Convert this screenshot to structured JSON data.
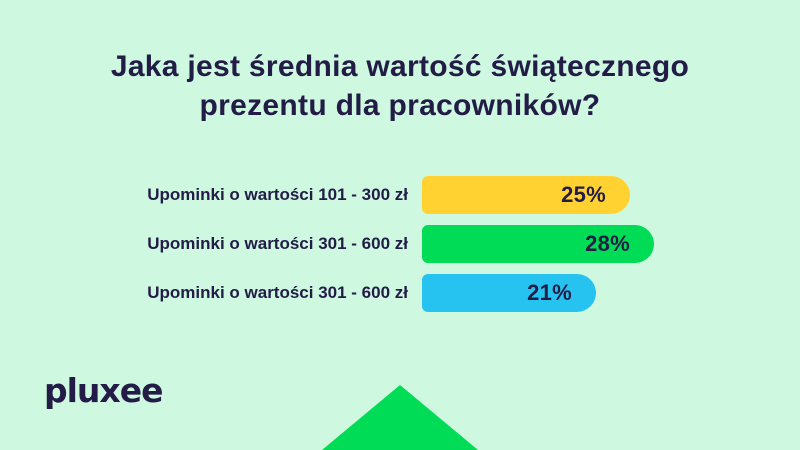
{
  "title": {
    "line1": "Jaka jest średnia wartość świątecznego",
    "line2": "prezentu dla pracowników?"
  },
  "chart_data": {
    "type": "bar",
    "orientation": "horizontal",
    "title": "Jaka jest średnia wartość świątecznego prezentu dla pracowników?",
    "categories": [
      "Upominki o wartości 101 - 300 zł",
      "Upominki o wartości 301 - 600 zł",
      "Upominki o wartości 301 - 600 zł"
    ],
    "values": [
      25,
      28,
      21
    ],
    "value_labels": [
      "25%",
      "28%",
      "21%"
    ],
    "bar_colors": [
      "#FFD232",
      "#00DC55",
      "#26C3F0"
    ],
    "unit": "%",
    "xlabel": "",
    "ylabel": "",
    "grid": false,
    "legend": false
  },
  "logo": {
    "text": "pluxee"
  },
  "colors": {
    "background": "#CEF8E0",
    "text": "#221C46",
    "accent_yellow": "#FFD232",
    "accent_green": "#00DC55",
    "accent_blue": "#26C3F0",
    "arrow_green": "#00DC55"
  }
}
